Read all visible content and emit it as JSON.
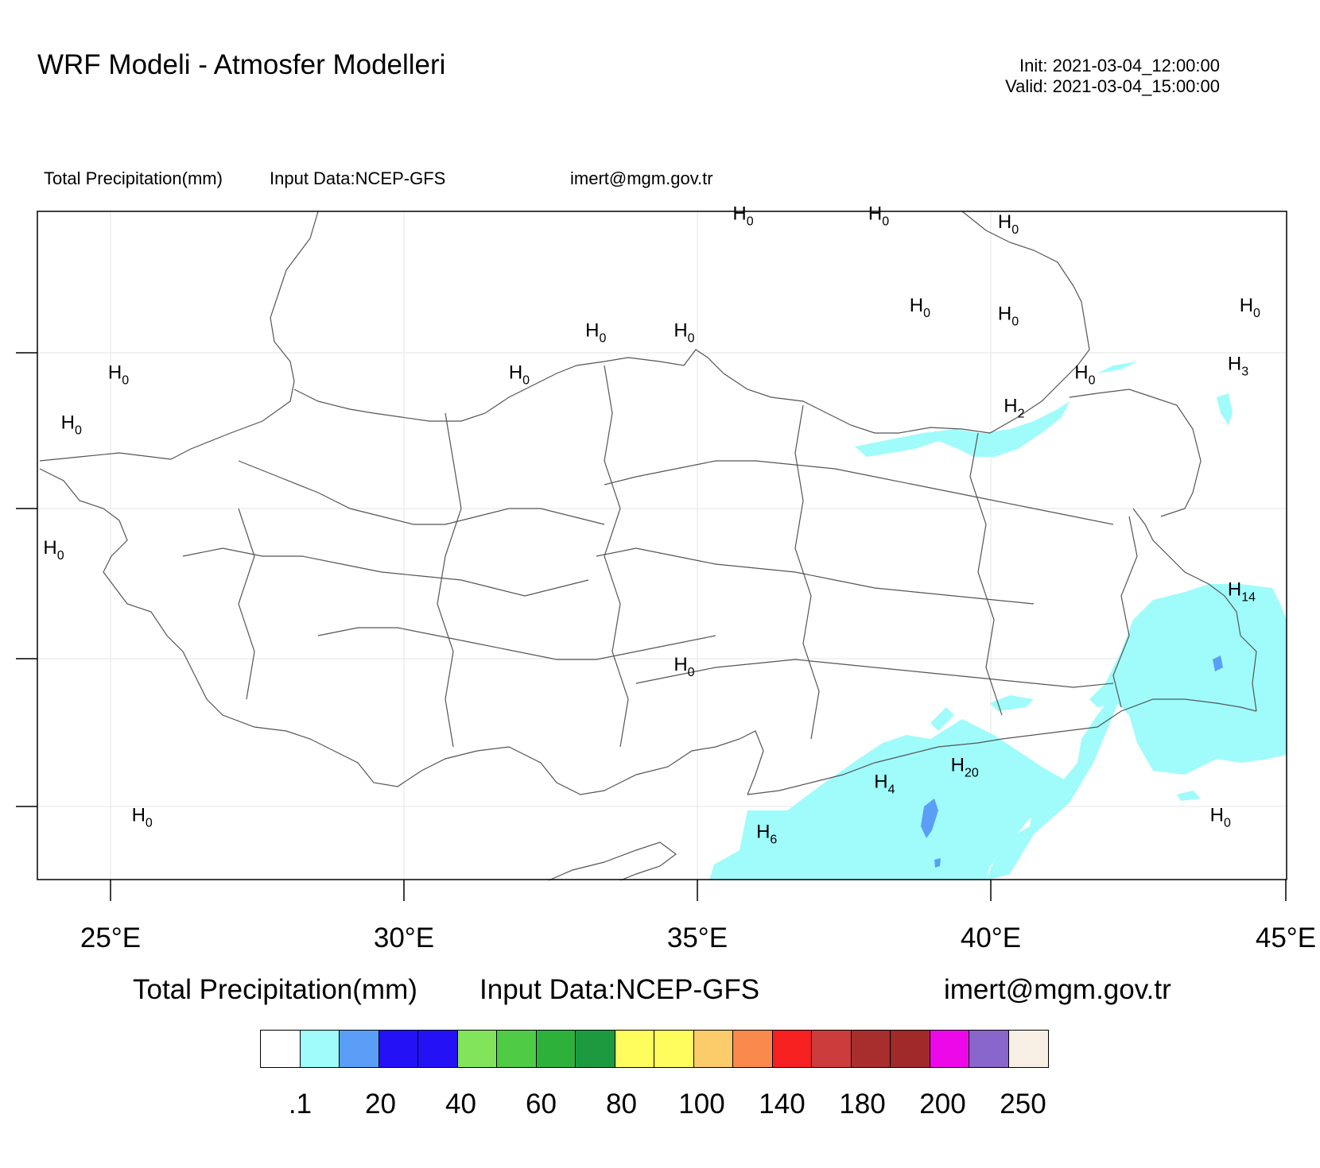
{
  "header": {
    "title": "WRF Modeli - Atmosfer Modelleri",
    "init": "Init: 2021-03-04_12:00:00",
    "valid": "Valid: 2021-03-04_15:00:00"
  },
  "subheader": {
    "field": "Total Precipitation(mm)",
    "input": "Input Data:NCEP-GFS",
    "contact": "imert@mgm.gov.tr"
  },
  "map": {
    "lon_ticks": [
      "25°E",
      "30°E",
      "35°E",
      "40°E",
      "45°E"
    ],
    "lon_range": [
      23.8,
      45.0
    ],
    "lat_range": [
      34.9,
      42.9
    ],
    "grid": true,
    "colors": {
      "light": "#9ffcfb",
      "medium": "#5a9ef8",
      "border": "#555555"
    },
    "h_labels": [
      {
        "h": "H",
        "v": "0",
        "lon": 35.6,
        "lat": 42.8
      },
      {
        "h": "H",
        "v": "0",
        "lon": 37.9,
        "lat": 42.8
      },
      {
        "h": "H",
        "v": "0",
        "lon": 40.1,
        "lat": 42.7
      },
      {
        "h": "H",
        "v": "0",
        "lon": 38.6,
        "lat": 41.7
      },
      {
        "h": "H",
        "v": "0",
        "lon": 40.1,
        "lat": 41.6
      },
      {
        "h": "H",
        "v": "0",
        "lon": 44.2,
        "lat": 41.7
      },
      {
        "h": "H",
        "v": "0",
        "lon": 33.1,
        "lat": 41.4
      },
      {
        "h": "H",
        "v": "0",
        "lon": 34.6,
        "lat": 41.4
      },
      {
        "h": "H",
        "v": "0",
        "lon": 31.8,
        "lat": 40.9
      },
      {
        "h": "H",
        "v": "0",
        "lon": 25.0,
        "lat": 40.9
      },
      {
        "h": "H",
        "v": "0",
        "lon": 41.4,
        "lat": 40.9
      },
      {
        "h": "H",
        "v": "3",
        "lon": 44.0,
        "lat": 41.0
      },
      {
        "h": "H",
        "v": "2",
        "lon": 40.2,
        "lat": 40.5
      },
      {
        "h": "H",
        "v": "0",
        "lon": 24.2,
        "lat": 40.3
      },
      {
        "h": "H",
        "v": "0",
        "lon": 23.9,
        "lat": 38.8
      },
      {
        "h": "H",
        "v": "14",
        "lon": 44.0,
        "lat": 38.3
      },
      {
        "h": "H",
        "v": "0",
        "lon": 34.6,
        "lat": 37.4
      },
      {
        "h": "H",
        "v": "20",
        "lon": 39.3,
        "lat": 36.2
      },
      {
        "h": "H",
        "v": "4",
        "lon": 38.0,
        "lat": 36.0
      },
      {
        "h": "H",
        "v": "0",
        "lon": 25.4,
        "lat": 35.6
      },
      {
        "h": "H",
        "v": "6",
        "lon": 36.0,
        "lat": 35.4
      },
      {
        "h": "H",
        "v": "0",
        "lon": 43.7,
        "lat": 35.6
      }
    ]
  },
  "legend": {
    "title": "Total Precipitation(mm)",
    "input": "Input Data:NCEP-GFS",
    "contact": "imert@mgm.gov.tr",
    "colors": [
      "#ffffff",
      "#9ffcfb",
      "#5a9ef8",
      "#2511f6",
      "#2511f6",
      "#82e45a",
      "#4fcb45",
      "#2db13b",
      "#1d9a3f",
      "#fffd5d",
      "#fffd5d",
      "#fccb6a",
      "#fa894c",
      "#f72021",
      "#cc3c3c",
      "#a82e2e",
      "#a02a2a",
      "#ec08e8",
      "#8866cc",
      "#f7efe4"
    ],
    "labels": [
      ".1",
      "20",
      "40",
      "60",
      "80",
      "100",
      "140",
      "180",
      "200",
      "250"
    ]
  }
}
